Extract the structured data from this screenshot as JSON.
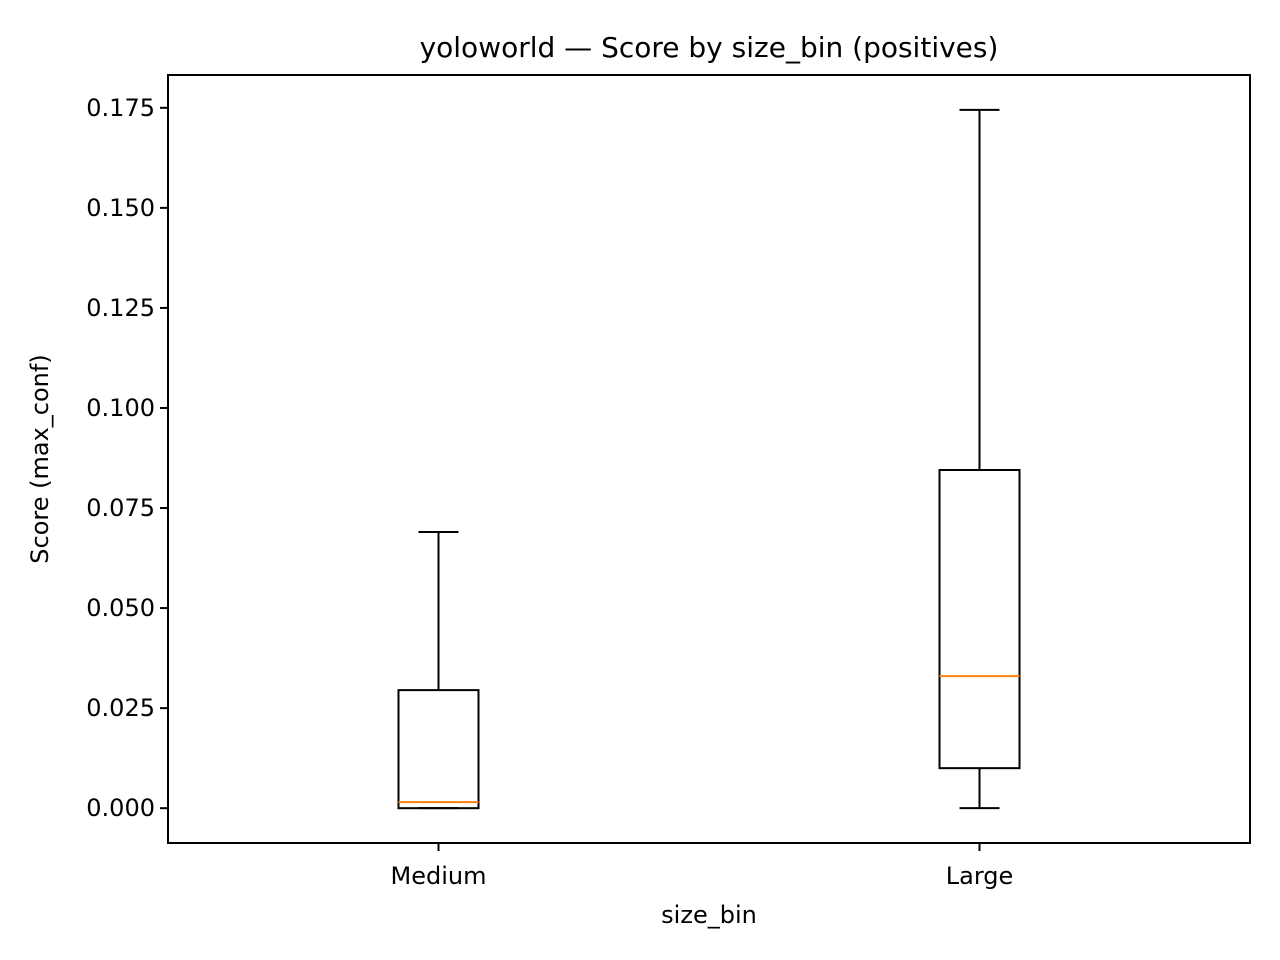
{
  "chart_data": {
    "type": "box",
    "title": "yoloworld — Score by size_bin (positives)",
    "xlabel": "size_bin",
    "ylabel": "Score (max_conf)",
    "categories": [
      "Medium",
      "Large"
    ],
    "boxes": [
      {
        "category": "Medium",
        "whisker_low": 0.0,
        "q1": 0.0,
        "median": 0.0015,
        "q3": 0.0295,
        "whisker_high": 0.069
      },
      {
        "category": "Large",
        "whisker_low": 0.0,
        "q1": 0.01,
        "median": 0.033,
        "q3": 0.0845,
        "whisker_high": 0.1745
      }
    ],
    "ylim": [
      -0.0087,
      0.1832
    ],
    "yticks": [
      0.0,
      0.025,
      0.05,
      0.075,
      0.1,
      0.125,
      0.15,
      0.175
    ],
    "ytick_labels": [
      "0.000",
      "0.025",
      "0.050",
      "0.075",
      "0.100",
      "0.125",
      "0.150",
      "0.175"
    ],
    "grid": false,
    "colors": {
      "box": "#000000",
      "median": "#ff7f0e",
      "background": "#ffffff"
    }
  }
}
